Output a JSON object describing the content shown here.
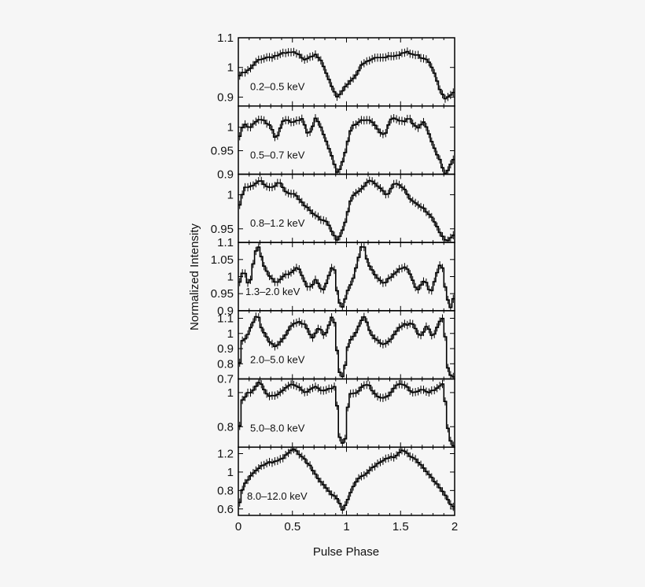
{
  "chart_data": {
    "type": "line",
    "xlabel": "Pulse Phase",
    "ylabel": "Normalized Intensity",
    "xlim": [
      0,
      2
    ],
    "x_ticks": [
      "0",
      "0.5",
      "1",
      "1.5",
      "2"
    ],
    "grid": false,
    "line_color": "#000000",
    "panels": [
      {
        "band": "0.2–0.5 keV",
        "ylim": [
          0.87,
          1.1
        ],
        "y_ticks": [
          {
            "v": 0.9,
            "t": "0.9"
          },
          {
            "v": 1.0,
            "t": "1"
          },
          {
            "v": 1.1,
            "t": "1.1"
          }
        ],
        "knots": [
          [
            0,
            0.97
          ],
          [
            0.1,
            0.99
          ],
          [
            0.2,
            1.03
          ],
          [
            0.35,
            1.04
          ],
          [
            0.5,
            1.05
          ],
          [
            0.62,
            1.03
          ],
          [
            0.72,
            1.05
          ],
          [
            0.8,
            0.99
          ],
          [
            0.88,
            0.92
          ],
          [
            0.92,
            0.89
          ],
          [
            0.97,
            0.93
          ],
          [
            1.05,
            0.96
          ],
          [
            1.15,
            1.01
          ],
          [
            1.25,
            1.03
          ],
          [
            1.4,
            1.04
          ],
          [
            1.55,
            1.05
          ],
          [
            1.65,
            1.04
          ],
          [
            1.75,
            1.03
          ],
          [
            1.82,
            0.98
          ],
          [
            1.88,
            0.91
          ],
          [
            1.92,
            0.89
          ],
          [
            2,
            0.92
          ]
        ]
      },
      {
        "band": "0.5–0.7 keV",
        "ylim": [
          0.9,
          1.045
        ],
        "y_ticks": [
          {
            "v": 0.9,
            "t": "0.9"
          },
          {
            "v": 0.95,
            "t": "0.95"
          },
          {
            "v": 1.0,
            "t": "1"
          }
        ],
        "knots": [
          [
            0,
            0.97
          ],
          [
            0.05,
            1.01
          ],
          [
            0.1,
            1.0
          ],
          [
            0.2,
            1.02
          ],
          [
            0.3,
            1.0
          ],
          [
            0.35,
            0.97
          ],
          [
            0.42,
            1.02
          ],
          [
            0.5,
            1.01
          ],
          [
            0.58,
            1.02
          ],
          [
            0.65,
            0.98
          ],
          [
            0.72,
            1.02
          ],
          [
            0.8,
            0.98
          ],
          [
            0.88,
            0.93
          ],
          [
            0.92,
            0.9
          ],
          [
            0.97,
            0.93
          ],
          [
            1.05,
            1.0
          ],
          [
            1.12,
            1.01
          ],
          [
            1.2,
            1.02
          ],
          [
            1.28,
            1.0
          ],
          [
            1.35,
            0.98
          ],
          [
            1.42,
            1.02
          ],
          [
            1.5,
            1.01
          ],
          [
            1.58,
            1.02
          ],
          [
            1.65,
            1.0
          ],
          [
            1.72,
            1.01
          ],
          [
            1.8,
            0.96
          ],
          [
            1.88,
            0.92
          ],
          [
            1.92,
            0.9
          ],
          [
            2,
            0.94
          ]
        ]
      },
      {
        "band": "0.8–1.2 keV",
        "ylim": [
          0.93,
          1.03
        ],
        "y_ticks": [
          {
            "v": 0.95,
            "t": "0.95"
          },
          {
            "v": 1.0,
            "t": "1"
          }
        ],
        "knots": [
          [
            0,
            0.98
          ],
          [
            0.05,
            1.01
          ],
          [
            0.12,
            1.01
          ],
          [
            0.2,
            1.02
          ],
          [
            0.3,
            1.01
          ],
          [
            0.38,
            1.02
          ],
          [
            0.45,
            1.0
          ],
          [
            0.52,
            1.0
          ],
          [
            0.58,
            0.99
          ],
          [
            0.65,
            0.98
          ],
          [
            0.72,
            0.97
          ],
          [
            0.82,
            0.96
          ],
          [
            0.88,
            0.94
          ],
          [
            0.92,
            0.93
          ],
          [
            0.97,
            0.95
          ],
          [
            1.05,
            1.0
          ],
          [
            1.15,
            1.01
          ],
          [
            1.22,
            1.02
          ],
          [
            1.3,
            1.01
          ],
          [
            1.38,
            1.0
          ],
          [
            1.45,
            1.02
          ],
          [
            1.52,
            1.01
          ],
          [
            1.6,
            0.99
          ],
          [
            1.7,
            0.98
          ],
          [
            1.78,
            0.97
          ],
          [
            1.85,
            0.95
          ],
          [
            1.92,
            0.93
          ],
          [
            2,
            0.94
          ]
        ]
      },
      {
        "band": "1.3–2.0 keV",
        "ylim": [
          0.9,
          1.1
        ],
        "y_ticks": [
          {
            "v": 0.9,
            "t": "0.9"
          },
          {
            "v": 0.95,
            "t": "0.95"
          },
          {
            "v": 1.0,
            "t": "1"
          },
          {
            "v": 1.05,
            "t": "1.05"
          },
          {
            "v": 1.1,
            "t": "1.1"
          }
        ],
        "knots": [
          [
            0,
            0.97
          ],
          [
            0.05,
            1.02
          ],
          [
            0.1,
            0.97
          ],
          [
            0.15,
            1.06
          ],
          [
            0.18,
            1.1
          ],
          [
            0.22,
            1.05
          ],
          [
            0.28,
            1.0
          ],
          [
            0.35,
            0.98
          ],
          [
            0.42,
            1.0
          ],
          [
            0.5,
            1.02
          ],
          [
            0.55,
            1.03
          ],
          [
            0.6,
            1.0
          ],
          [
            0.65,
            0.96
          ],
          [
            0.72,
            0.99
          ],
          [
            0.78,
            0.95
          ],
          [
            0.85,
            1.02
          ],
          [
            0.88,
            1.04
          ],
          [
            0.92,
            0.94
          ],
          [
            0.96,
            0.91
          ],
          [
            1.0,
            0.95
          ],
          [
            1.05,
            0.98
          ],
          [
            1.1,
            1.04
          ],
          [
            1.15,
            1.1
          ],
          [
            1.2,
            1.04
          ],
          [
            1.28,
            1.0
          ],
          [
            1.35,
            0.98
          ],
          [
            1.42,
            1.0
          ],
          [
            1.5,
            1.02
          ],
          [
            1.55,
            1.03
          ],
          [
            1.6,
            1.0
          ],
          [
            1.65,
            0.96
          ],
          [
            1.72,
            0.99
          ],
          [
            1.78,
            0.95
          ],
          [
            1.85,
            1.02
          ],
          [
            1.88,
            1.04
          ],
          [
            1.92,
            0.95
          ],
          [
            1.96,
            0.91
          ],
          [
            2,
            0.95
          ]
        ]
      },
      {
        "band": "2.0–5.0 keV",
        "ylim": [
          0.7,
          1.15
        ],
        "y_ticks": [
          {
            "v": 0.7,
            "t": "0.7"
          },
          {
            "v": 0.8,
            "t": "0.8"
          },
          {
            "v": 0.9,
            "t": "0.9"
          },
          {
            "v": 1.0,
            "t": "1"
          },
          {
            "v": 1.1,
            "t": "1.1"
          }
        ],
        "knots": [
          [
            0,
            0.72
          ],
          [
            0.03,
            0.95
          ],
          [
            0.08,
            0.98
          ],
          [
            0.12,
            1.05
          ],
          [
            0.18,
            1.12
          ],
          [
            0.22,
            1.02
          ],
          [
            0.28,
            0.95
          ],
          [
            0.35,
            0.92
          ],
          [
            0.42,
            0.98
          ],
          [
            0.5,
            1.05
          ],
          [
            0.55,
            1.07
          ],
          [
            0.62,
            1.05
          ],
          [
            0.68,
            0.97
          ],
          [
            0.75,
            1.05
          ],
          [
            0.8,
            0.98
          ],
          [
            0.85,
            1.08
          ],
          [
            0.88,
            1.12
          ],
          [
            0.93,
            0.75
          ],
          [
            0.97,
            0.7
          ],
          [
            1.02,
            0.95
          ],
          [
            1.08,
            1.0
          ],
          [
            1.12,
            1.07
          ],
          [
            1.17,
            1.12
          ],
          [
            1.22,
            1.0
          ],
          [
            1.28,
            0.95
          ],
          [
            1.35,
            0.92
          ],
          [
            1.42,
            0.98
          ],
          [
            1.5,
            1.05
          ],
          [
            1.55,
            1.07
          ],
          [
            1.62,
            1.05
          ],
          [
            1.68,
            0.97
          ],
          [
            1.75,
            1.05
          ],
          [
            1.8,
            0.98
          ],
          [
            1.86,
            1.08
          ],
          [
            1.9,
            1.12
          ],
          [
            1.93,
            0.8
          ],
          [
            1.97,
            0.7
          ],
          [
            2,
            0.72
          ]
        ]
      },
      {
        "band": "5.0–8.0 keV",
        "ylim": [
          0.68,
          1.08
        ],
        "y_ticks": [
          {
            "v": 0.8,
            "t": "0.8"
          },
          {
            "v": 1.0,
            "t": "1"
          }
        ],
        "knots": [
          [
            0,
            0.7
          ],
          [
            0.03,
            0.95
          ],
          [
            0.1,
            1.0
          ],
          [
            0.15,
            1.03
          ],
          [
            0.2,
            1.07
          ],
          [
            0.25,
            1.0
          ],
          [
            0.32,
            0.97
          ],
          [
            0.4,
            1.0
          ],
          [
            0.48,
            1.05
          ],
          [
            0.55,
            1.04
          ],
          [
            0.62,
            1.0
          ],
          [
            0.7,
            1.03
          ],
          [
            0.78,
            1.0
          ],
          [
            0.85,
            1.02
          ],
          [
            0.9,
            1.05
          ],
          [
            0.93,
            0.75
          ],
          [
            0.98,
            0.68
          ],
          [
            1.02,
            0.98
          ],
          [
            1.1,
            1.0
          ],
          [
            1.15,
            1.03
          ],
          [
            1.2,
            1.05
          ],
          [
            1.25,
            1.0
          ],
          [
            1.32,
            0.97
          ],
          [
            1.4,
            0.99
          ],
          [
            1.48,
            1.05
          ],
          [
            1.55,
            1.04
          ],
          [
            1.62,
            1.0
          ],
          [
            1.7,
            1.02
          ],
          [
            1.78,
            1.0
          ],
          [
            1.85,
            1.03
          ],
          [
            1.9,
            1.05
          ],
          [
            1.93,
            0.8
          ],
          [
            1.97,
            0.7
          ],
          [
            2,
            0.68
          ]
        ]
      },
      {
        "band": "8.0–12.0 keV",
        "ylim": [
          0.53,
          1.27
        ],
        "y_ticks": [
          {
            "v": 0.6,
            "t": "0.6"
          },
          {
            "v": 0.8,
            "t": "0.8"
          },
          {
            "v": 1.0,
            "t": "1"
          },
          {
            "v": 1.2,
            "t": "1.2"
          }
        ],
        "knots": [
          [
            0,
            0.6
          ],
          [
            0.05,
            0.88
          ],
          [
            0.1,
            0.95
          ],
          [
            0.2,
            1.05
          ],
          [
            0.3,
            1.1
          ],
          [
            0.4,
            1.15
          ],
          [
            0.5,
            1.25
          ],
          [
            0.6,
            1.15
          ],
          [
            0.7,
            1.0
          ],
          [
            0.8,
            0.85
          ],
          [
            0.88,
            0.75
          ],
          [
            0.92,
            0.68
          ],
          [
            0.97,
            0.57
          ],
          [
            1.02,
            0.72
          ],
          [
            1.08,
            0.9
          ],
          [
            1.15,
            0.97
          ],
          [
            1.25,
            1.05
          ],
          [
            1.35,
            1.12
          ],
          [
            1.45,
            1.18
          ],
          [
            1.52,
            1.25
          ],
          [
            1.6,
            1.17
          ],
          [
            1.7,
            1.05
          ],
          [
            1.8,
            0.92
          ],
          [
            1.88,
            0.82
          ],
          [
            1.95,
            0.68
          ],
          [
            2,
            0.6
          ]
        ]
      }
    ]
  }
}
